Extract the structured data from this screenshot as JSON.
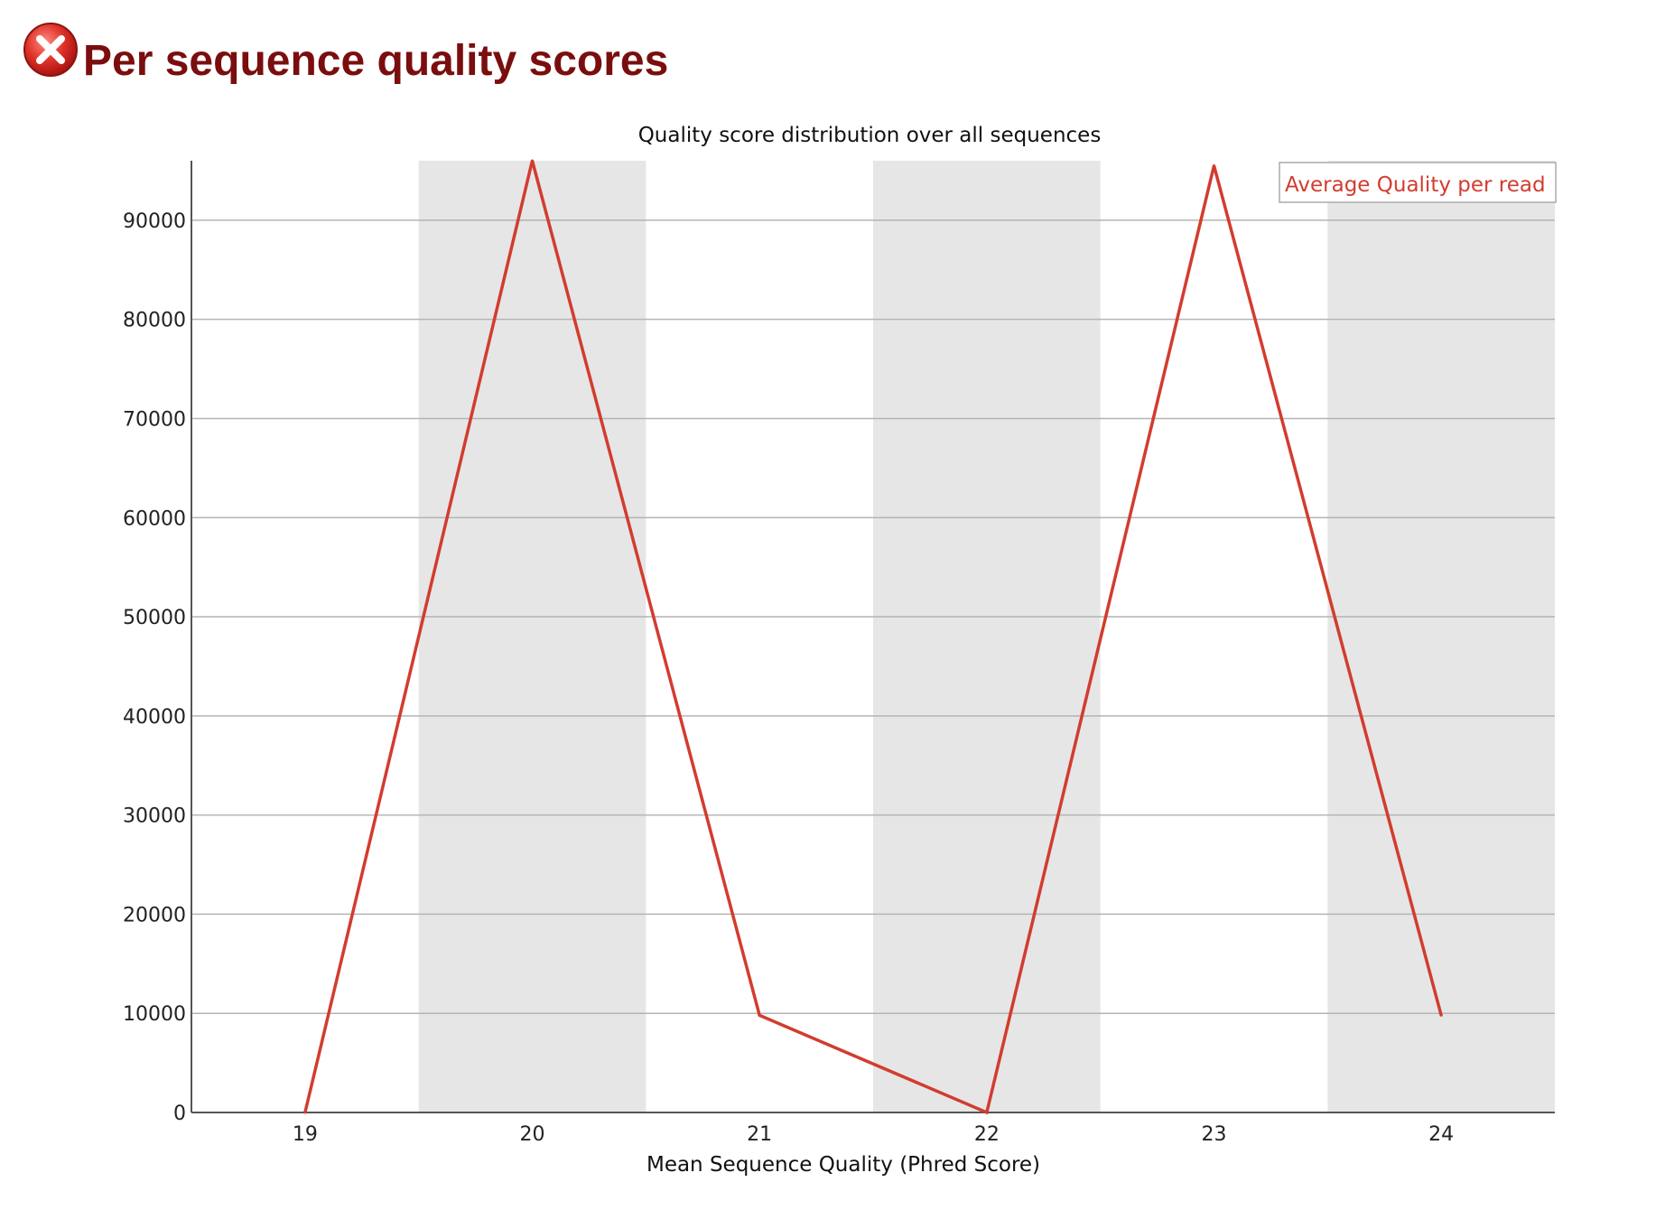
{
  "header": {
    "status": "fail",
    "status_icon": "error-x-circle-icon",
    "title": "Per sequence quality scores"
  },
  "colors": {
    "title": "#7a0e0e",
    "series": "#d23c2f",
    "band": "#e6e6e6",
    "grid": "#b4b4b4",
    "axis": "#555555"
  },
  "chart_data": {
    "type": "line",
    "title": "Quality score distribution over all sequences",
    "xlabel": "Mean Sequence Quality (Phred Score)",
    "ylabel": "",
    "x": [
      19,
      20,
      21,
      22,
      23,
      24
    ],
    "xlim": [
      18.5,
      24.5
    ],
    "ylim": [
      0,
      96000
    ],
    "yticks": [
      0,
      10000,
      20000,
      30000,
      40000,
      50000,
      60000,
      70000,
      80000,
      90000
    ],
    "grid": true,
    "alternating_bands": true,
    "legend": {
      "position": "top-right"
    },
    "series": [
      {
        "name": "Average Quality per read",
        "values": [
          0,
          96000,
          9800,
          0,
          95500,
          9800
        ]
      }
    ]
  }
}
